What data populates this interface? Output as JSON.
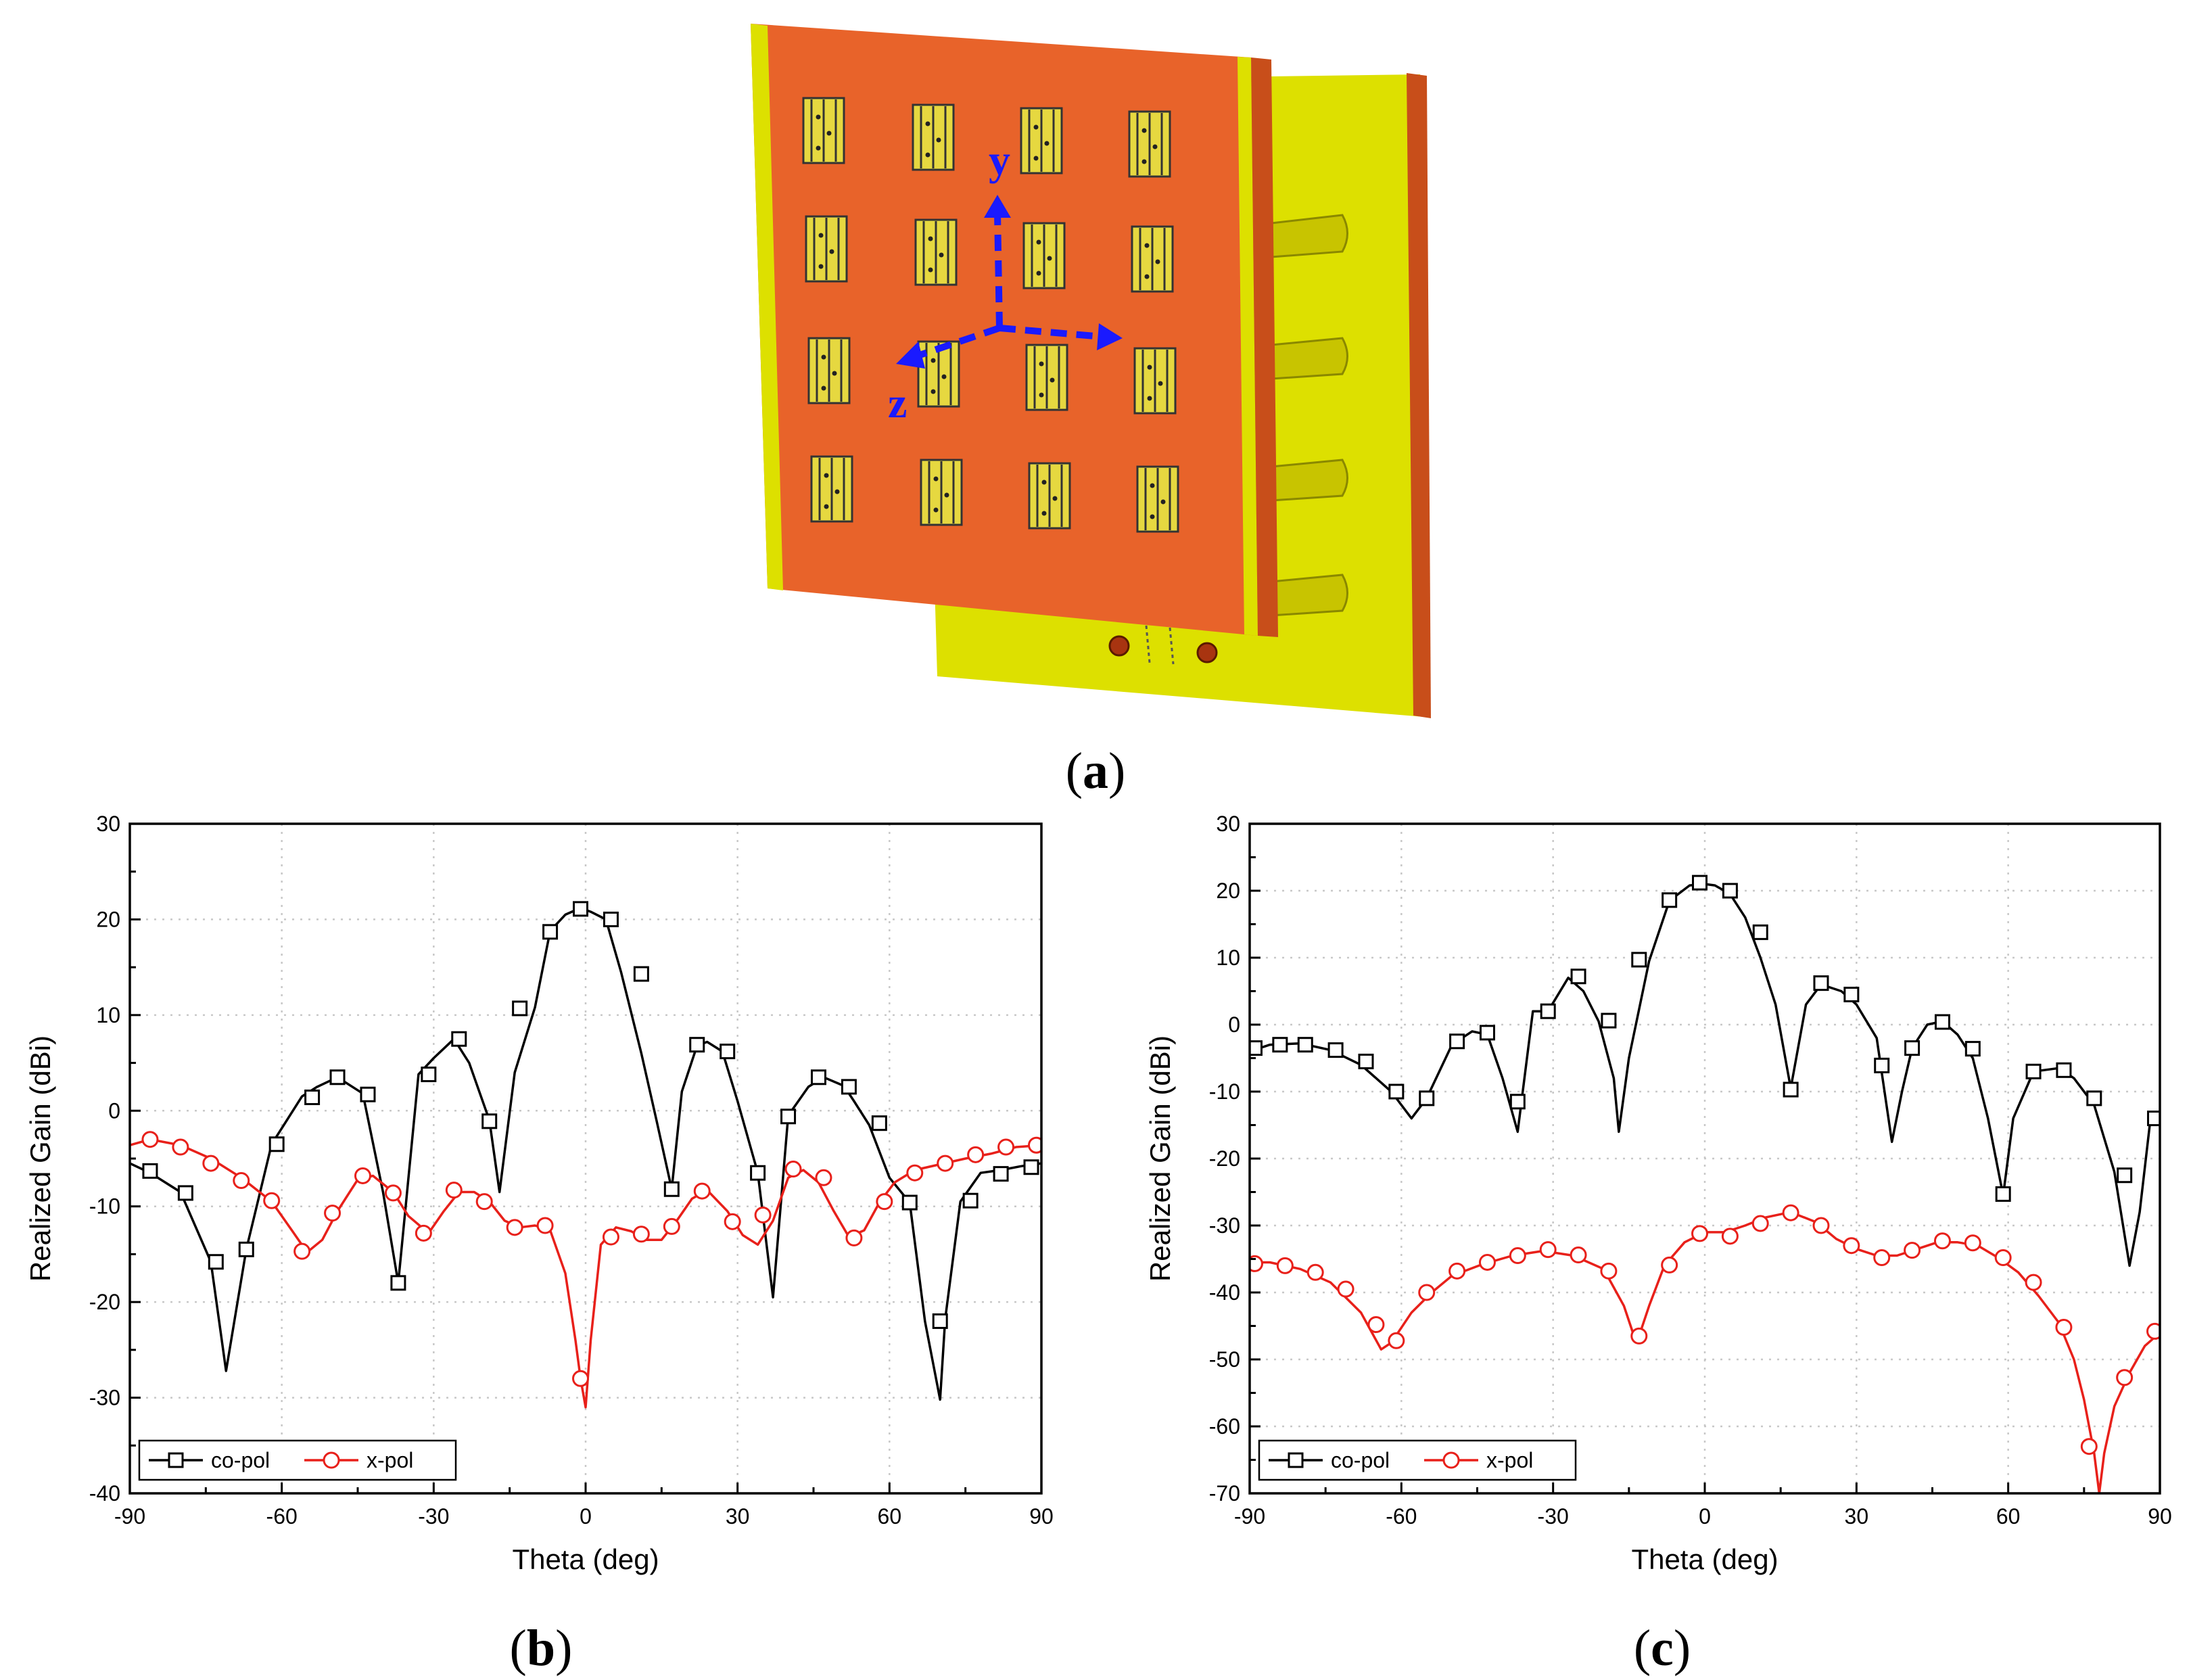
{
  "figure": {
    "colors": {
      "board_front": "#E8632A",
      "board_edge": "#C84E1A",
      "substrate": "#DDE000",
      "substrate_dark": "#B8BA00",
      "element": "#E6D840",
      "axis": "#1a1aff",
      "co_pol": "#000000",
      "x_pol": "#E8201A"
    },
    "panel_a": {
      "caption_open": "(",
      "caption_letter": "a",
      "caption_close": ")",
      "axis_labels": {
        "y": "y",
        "z": "z"
      }
    }
  },
  "chart_data": [
    {
      "type": "line",
      "panel": "b",
      "caption_open": "(",
      "caption_letter": "b",
      "caption_close": ")",
      "xlabel": "Theta (deg)",
      "ylabel": "Realized Gain (dBi)",
      "xlim": [
        -90,
        90
      ],
      "ylim": [
        -40,
        30
      ],
      "xticks": [
        -90,
        -60,
        -30,
        0,
        30,
        60,
        90
      ],
      "yticks": [
        -40,
        -30,
        -20,
        -10,
        0,
        10,
        20,
        30
      ],
      "grid": true,
      "legend_position": "bottom-left",
      "series": [
        {
          "name": "co-pol",
          "color": "#000000",
          "marker": "square",
          "x": [
            -90,
            -86,
            -80,
            -74,
            -71,
            -67,
            -62,
            -56,
            -53,
            -49,
            -44,
            -40,
            -37,
            -33,
            -30,
            -26,
            -23,
            -19,
            -17,
            -14,
            -10,
            -7,
            -4,
            -1,
            0,
            1,
            4,
            7,
            11,
            14,
            17,
            19,
            22,
            24,
            27,
            30,
            34,
            37,
            40,
            44,
            47,
            51,
            53,
            56,
            60,
            64,
            67,
            70,
            71,
            74,
            78,
            82,
            86,
            90
          ],
          "y": [
            -5.5,
            -6.5,
            -8.5,
            -15.8,
            -27.2,
            -14.5,
            -3.5,
            1.5,
            2.5,
            3.5,
            1.8,
            -8.5,
            -18,
            3.8,
            5.5,
            7.5,
            5,
            -1,
            -8.5,
            4,
            10.8,
            18.8,
            20.5,
            21.2,
            21,
            20.8,
            20,
            14.5,
            6,
            -1,
            -8.2,
            2,
            6.8,
            7.2,
            6.2,
            1,
            -6.5,
            -19.5,
            -0.5,
            2.5,
            3.5,
            2.6,
            1,
            -1.5,
            -7,
            -9.6,
            -22,
            -30.2,
            -21.8,
            -9.5,
            -6.5,
            -6.2,
            -5.8,
            -5.5
          ],
          "markers_x": [
            -86,
            -79,
            -73,
            -67,
            -61,
            -54,
            -49,
            -43,
            -37,
            -31,
            -25,
            -19,
            -13,
            -7,
            -1,
            5,
            11,
            17,
            22,
            28,
            34,
            40,
            46,
            52,
            58,
            64,
            70,
            76,
            82,
            88
          ],
          "markers_y": [
            -6.3,
            -8.6,
            -15.8,
            -14.5,
            -3.5,
            1.4,
            3.5,
            1.7,
            -18,
            3.8,
            7.5,
            -1.1,
            10.7,
            18.7,
            21.1,
            20,
            14.3,
            -8.2,
            6.9,
            6.2,
            -6.5,
            -0.6,
            3.5,
            2.5,
            -1.3,
            -9.6,
            -22,
            -9.4,
            -6.6,
            -5.9
          ]
        },
        {
          "name": "x-pol",
          "color": "#E8201A",
          "marker": "circle",
          "x": [
            -90,
            -86,
            -80,
            -74,
            -68,
            -62,
            -58,
            -55,
            -52,
            -49,
            -45,
            -42,
            -38,
            -35,
            -31,
            -28,
            -25,
            -22,
            -19,
            -16,
            -13,
            -10,
            -7,
            -4,
            -2,
            -1,
            0,
            1,
            3,
            6,
            9,
            12,
            15,
            18,
            21,
            24,
            28,
            31,
            34,
            37,
            40,
            43,
            46,
            49,
            52,
            55,
            58,
            61,
            65,
            70,
            75,
            80,
            85,
            90
          ],
          "y": [
            -3.6,
            -3,
            -3.6,
            -5,
            -7,
            -9.5,
            -12.5,
            -14.8,
            -13.5,
            -10.5,
            -7.2,
            -6.8,
            -8.5,
            -11,
            -12.8,
            -10.5,
            -8.5,
            -8.5,
            -9.5,
            -11.5,
            -12.2,
            -12,
            -12.5,
            -17,
            -24,
            -28,
            -31,
            -24,
            -14,
            -12.2,
            -12.6,
            -13.5,
            -13.5,
            -11.5,
            -9.2,
            -8.3,
            -10.5,
            -13,
            -14,
            -11.5,
            -7,
            -6.2,
            -7.5,
            -10.5,
            -13.2,
            -12.5,
            -9.6,
            -7.5,
            -6.2,
            -5.6,
            -5,
            -4.5,
            -3.8,
            -3.6
          ],
          "markers_x": [
            -86,
            -80,
            -74,
            -68,
            -62,
            -56,
            -50,
            -44,
            -38,
            -32,
            -26,
            -20,
            -14,
            -8,
            -1,
            5,
            11,
            17,
            23,
            29,
            35,
            41,
            47,
            53,
            59,
            65,
            71,
            77,
            83,
            89
          ],
          "markers_y": [
            -3,
            -3.8,
            -5.5,
            -7.3,
            -9.4,
            -14.7,
            -10.7,
            -6.8,
            -8.6,
            -12.8,
            -8.3,
            -9.5,
            -12.2,
            -12,
            -28,
            -13.2,
            -12.9,
            -12.1,
            -8.4,
            -11.6,
            -10.9,
            -6.1,
            -7,
            -13.3,
            -9.5,
            -6.5,
            -5.5,
            -4.6,
            -3.8,
            -3.6
          ]
        }
      ]
    },
    {
      "type": "line",
      "panel": "c",
      "caption_open": "(",
      "caption_letter": "c",
      "caption_close": ")",
      "xlabel": "Theta (deg)",
      "ylabel": "Realized Gain (dBi)",
      "xlim": [
        -90,
        90
      ],
      "ylim": [
        -70,
        30
      ],
      "xticks": [
        -90,
        -60,
        -30,
        0,
        30,
        60,
        90
      ],
      "yticks": [
        -70,
        -60,
        -50,
        -40,
        -30,
        -20,
        -10,
        0,
        10,
        20,
        30
      ],
      "grid": true,
      "legend_position": "bottom-left",
      "series": [
        {
          "name": "co-pol",
          "color": "#000000",
          "marker": "square",
          "x": [
            -90,
            -86,
            -80,
            -74,
            -68,
            -62,
            -58,
            -55,
            -50,
            -46,
            -43,
            -40,
            -37,
            -34,
            -31,
            -27,
            -24,
            -21,
            -18,
            -17,
            -15,
            -11,
            -7,
            -3,
            0,
            2,
            5,
            8,
            11,
            14,
            17,
            20,
            23,
            27,
            30,
            34,
            37,
            39,
            41,
            44,
            47,
            50,
            53,
            56,
            59,
            61,
            65,
            70,
            73,
            77,
            81,
            84,
            86,
            88,
            90
          ],
          "y": [
            -4,
            -3,
            -2.8,
            -3.8,
            -6,
            -10,
            -14,
            -11,
            -3,
            -1,
            -1.5,
            -8,
            -16,
            2,
            2,
            7,
            5,
            0.5,
            -8,
            -16,
            -5,
            9.5,
            18.5,
            20.8,
            21,
            20.8,
            19.5,
            16,
            10,
            3,
            -9.5,
            3,
            6,
            5,
            3,
            -2,
            -17.5,
            -10,
            -3.5,
            0,
            0.5,
            -1.5,
            -5,
            -14,
            -25.5,
            -14,
            -7,
            -6.5,
            -8,
            -12,
            -22,
            -36,
            -28,
            -15,
            -13.5
          ],
          "markers_x": [
            -89,
            -84,
            -79,
            -73,
            -67,
            -61,
            -55,
            -49,
            -43,
            -37,
            -31,
            -25,
            -19,
            -13,
            -7,
            -1,
            5,
            11,
            17,
            23,
            29,
            35,
            41,
            47,
            53,
            59,
            65,
            71,
            77,
            83,
            89
          ],
          "markers_y": [
            -3.5,
            -3,
            -3,
            -3.8,
            -5.5,
            -10,
            -11,
            -2.5,
            -1.2,
            -11.5,
            2,
            7.2,
            0.6,
            9.7,
            18.6,
            21.2,
            20,
            13.8,
            -9.7,
            6.2,
            4.5,
            -6.1,
            -3.5,
            0.4,
            -3.6,
            -25.3,
            -7,
            -6.8,
            -11,
            -22.5,
            -14
          ]
        },
        {
          "name": "x-pol",
          "color": "#E8201A",
          "marker": "circle",
          "x": [
            -90,
            -86,
            -80,
            -74,
            -68,
            -64,
            -62,
            -58,
            -54,
            -50,
            -44,
            -38,
            -32,
            -26,
            -20,
            -16,
            -14,
            -13,
            -11,
            -8,
            -4,
            0,
            4,
            8,
            12,
            17,
            22,
            26,
            30,
            34,
            38,
            42,
            46,
            50,
            54,
            58,
            62,
            66,
            70,
            73,
            75,
            77,
            78,
            79,
            81,
            84,
            87,
            90
          ],
          "y": [
            -35.5,
            -35.5,
            -36.5,
            -38.5,
            -43,
            -48.5,
            -47.5,
            -43,
            -40,
            -37.5,
            -35.8,
            -34.5,
            -33.8,
            -34.5,
            -36.5,
            -42,
            -46.5,
            -46.5,
            -42,
            -36,
            -32.5,
            -31,
            -31,
            -30,
            -28.8,
            -28,
            -29.5,
            -32,
            -33.5,
            -34.5,
            -34.5,
            -33.5,
            -32.5,
            -32.5,
            -33,
            -34.8,
            -37,
            -40.5,
            -44.5,
            -50,
            -56,
            -64,
            -70,
            -64,
            -57,
            -52,
            -48,
            -46
          ],
          "markers_x": [
            -89,
            -83,
            -77,
            -71,
            -65,
            -61,
            -55,
            -49,
            -43,
            -37,
            -31,
            -25,
            -19,
            -13,
            -7,
            -1,
            5,
            11,
            17,
            23,
            29,
            35,
            41,
            47,
            53,
            59,
            65,
            71,
            76,
            83,
            89
          ],
          "markers_y": [
            -35.7,
            -36,
            -37,
            -39.5,
            -44.8,
            -47.2,
            -40,
            -36.8,
            -35.5,
            -34.5,
            -33.6,
            -34.4,
            -36.8,
            -46.5,
            -35.9,
            -31.2,
            -31.6,
            -29.7,
            -28.1,
            -30,
            -33,
            -34.8,
            -33.7,
            -32.3,
            -32.6,
            -34.8,
            -38.5,
            -45.2,
            -63,
            -52.7,
            -45.8
          ]
        }
      ]
    }
  ]
}
